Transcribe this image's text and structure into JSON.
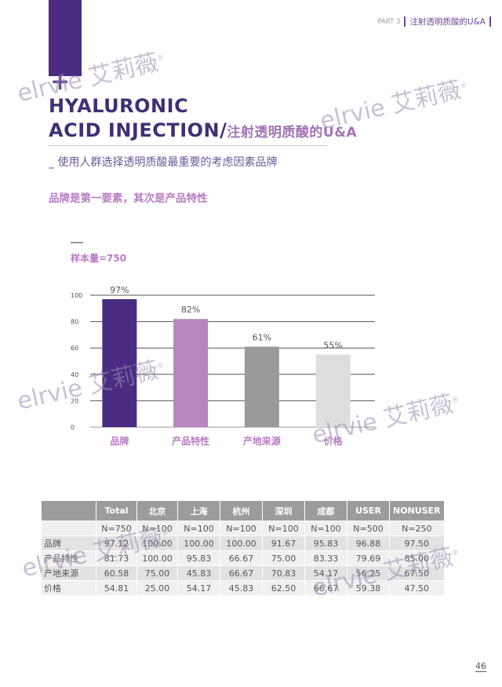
{
  "header": {
    "part": "PART 3",
    "title": "注射透明质酸的U&A"
  },
  "title": {
    "line1": "HYALURONIC",
    "line2_en": "ACID INJECTION/",
    "line2_cn": "注射透明质酸的U&A"
  },
  "subtitle": "_ 使用人群选择透明质酸最重要的考虑因素品牌",
  "key_point": "品牌是第一要素，其次是产品特性",
  "sample_size": "样本量=750",
  "watermark_text": "elrvie 艾莉薇",
  "chart_data": {
    "type": "bar",
    "title": "",
    "xlabel": "",
    "ylabel": "",
    "categories": [
      "品牌",
      "产品特性",
      "产地来源",
      "价格"
    ],
    "values": [
      97,
      82,
      61,
      55
    ],
    "value_labels": [
      "97%",
      "82%",
      "61%",
      "55%"
    ],
    "colors": [
      "#4a2d82",
      "#b885bf",
      "#9a9a9a",
      "#dedede"
    ],
    "ylim": [
      0,
      100
    ],
    "yticks": [
      0,
      20,
      40,
      60,
      80,
      100
    ],
    "grid": true
  },
  "table": {
    "headers": [
      "",
      "Total",
      "北京",
      "上海",
      "杭州",
      "深圳",
      "成都",
      "USER",
      "NONUSER"
    ],
    "rows": [
      [
        "",
        "N=750",
        "N=100",
        "N=100",
        "N=100",
        "N=100",
        "N=100",
        "N=500",
        "N=250"
      ],
      [
        "品牌",
        "97.12",
        "100.00",
        "100.00",
        "100.00",
        "91.67",
        "95.83",
        "96.88",
        "97.50"
      ],
      [
        "产品特性",
        "81.73",
        "100.00",
        "95.83",
        "66.67",
        "75.00",
        "83.33",
        "79.69",
        "85.00"
      ],
      [
        "产地来源",
        "60.58",
        "75.00",
        "45.83",
        "66.67",
        "70.83",
        "54.17",
        "56.25",
        "67.50"
      ],
      [
        "价格",
        "54.81",
        "25.00",
        "54.17",
        "45.83",
        "62.50",
        "66.67",
        "59.38",
        "47.50"
      ]
    ]
  },
  "page_number": "46"
}
